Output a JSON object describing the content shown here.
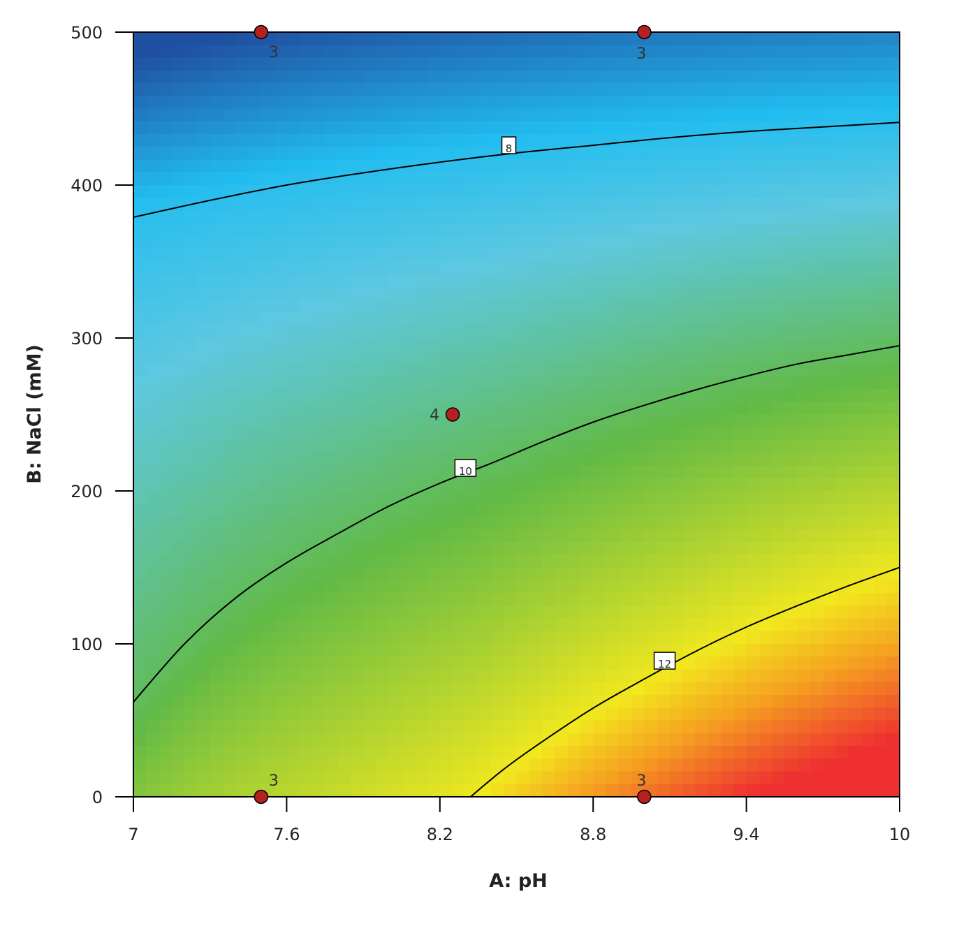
{
  "chart_data": {
    "type": "contour",
    "xlabel": "A: pH",
    "ylabel": "B: NaCl (mM)",
    "xlim": [
      7,
      10
    ],
    "ylim": [
      0,
      500
    ],
    "xticks": [
      "7",
      "7.6",
      "8.2",
      "8.8",
      "9.4",
      "10"
    ],
    "yticks": [
      "0",
      "100",
      "200",
      "300",
      "400",
      "500"
    ],
    "colormap": [
      "#1f4fa0",
      "#22bdf0",
      "#5ec8e0",
      "#62ba46",
      "#f2e81e",
      "#f5a020",
      "#ee3030"
    ],
    "contours": [
      {
        "level": "8",
        "label_at": {
          "x": 8.47,
          "y": 426
        },
        "points": [
          [
            7.0,
            379
          ],
          [
            7.3,
            390
          ],
          [
            7.6,
            400
          ],
          [
            7.9,
            408
          ],
          [
            8.2,
            415
          ],
          [
            8.5,
            421
          ],
          [
            8.8,
            426
          ],
          [
            9.1,
            431
          ],
          [
            9.4,
            435
          ],
          [
            9.7,
            438
          ],
          [
            10.0,
            441
          ]
        ]
      },
      {
        "level": "10",
        "label_at": {
          "x": 8.3,
          "y": 215
        },
        "points": [
          [
            7.0,
            62
          ],
          [
            7.2,
            100
          ],
          [
            7.4,
            130
          ],
          [
            7.6,
            153
          ],
          [
            7.8,
            172
          ],
          [
            8.0,
            190
          ],
          [
            8.2,
            205
          ],
          [
            8.4,
            218
          ],
          [
            8.6,
            232
          ],
          [
            8.8,
            245
          ],
          [
            9.0,
            256
          ],
          [
            9.2,
            266
          ],
          [
            9.4,
            275
          ],
          [
            9.6,
            283
          ],
          [
            9.8,
            289
          ],
          [
            10.0,
            295
          ]
        ]
      },
      {
        "level": "12",
        "label_at": {
          "x": 9.08,
          "y": 89
        },
        "points": [
          [
            8.32,
            0
          ],
          [
            8.45,
            18
          ],
          [
            8.6,
            36
          ],
          [
            8.8,
            58
          ],
          [
            9.0,
            77
          ],
          [
            9.2,
            95
          ],
          [
            9.4,
            111
          ],
          [
            9.6,
            125
          ],
          [
            9.8,
            138
          ],
          [
            10.0,
            150
          ]
        ]
      }
    ],
    "design_points": [
      {
        "x": 7.5,
        "y": 500,
        "label": "3"
      },
      {
        "x": 9.0,
        "y": 500,
        "label": "3"
      },
      {
        "x": 8.25,
        "y": 250,
        "label": "4"
      },
      {
        "x": 7.5,
        "y": 0,
        "label": "3"
      },
      {
        "x": 9.0,
        "y": 0,
        "label": "3"
      }
    ],
    "point_color": "#b52020"
  }
}
